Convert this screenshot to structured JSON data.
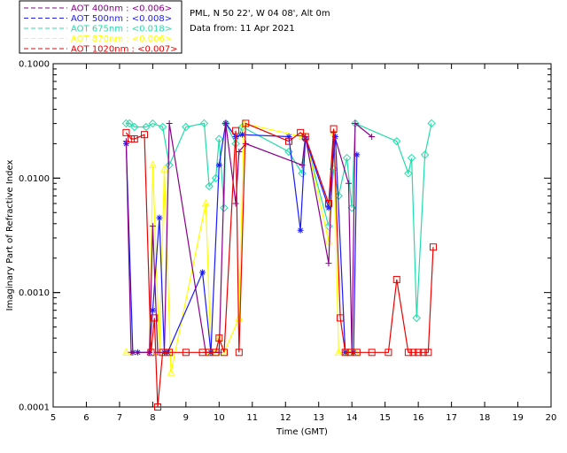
{
  "header": {
    "site": "PML, N 50 22', W 04 08', Alt 0m",
    "date": "Data from: 11 Apr 2021"
  },
  "legend": [
    {
      "label": "AOT  400nm : <0.006>",
      "color": "#8a008a"
    },
    {
      "label": "AOT  500nm : <0.008>",
      "color": "#1a1aff"
    },
    {
      "label": "AOT  675nm : <0.018>",
      "color": "#22ddaa"
    },
    {
      "label": "AOT  870nm : <0.006>",
      "color": "#ffff00"
    },
    {
      "label": "AOT 1020nm : <0.007>",
      "color": "#ee0000"
    }
  ],
  "chart_data": {
    "type": "line",
    "xlabel": "Time (GMT)",
    "ylabel": "Imaginary Part of Refractive Index",
    "xlim": [
      5,
      20
    ],
    "ylim": [
      0.0001,
      0.1
    ],
    "yscale": "log",
    "xticks": [
      "5",
      "6",
      "7",
      "8",
      "9",
      "10",
      "11",
      "12",
      "13",
      "14",
      "15",
      "16",
      "17",
      "18",
      "19",
      "20"
    ],
    "yticks": [
      {
        "value": 0.0001,
        "label": "0.0001"
      },
      {
        "value": 0.001,
        "label": "0.0010"
      },
      {
        "value": 0.01,
        "label": "0.0100"
      },
      {
        "value": 0.1,
        "label": "0.1000"
      }
    ],
    "series": [
      {
        "name": "AOT  400nm : <0.006>",
        "color": "#8a008a",
        "marker": "plus",
        "points": [
          [
            7.2,
            0.021
          ],
          [
            7.35,
            0.0003
          ],
          [
            7.9,
            0.0003
          ],
          [
            8.0,
            0.0038
          ],
          [
            8.15,
            0.0003
          ],
          [
            8.35,
            0.0003
          ],
          [
            8.5,
            0.0301
          ],
          [
            9.6,
            0.0003
          ],
          [
            9.8,
            0.0003
          ],
          [
            10.0,
            0.0003
          ],
          [
            10.2,
            0.0301
          ],
          [
            10.5,
            0.006
          ],
          [
            10.6,
            0.017
          ],
          [
            10.8,
            0.02
          ],
          [
            12.5,
            0.013
          ],
          [
            12.6,
            0.023
          ],
          [
            13.3,
            0.0018
          ],
          [
            13.45,
            0.025
          ],
          [
            13.9,
            0.009
          ],
          [
            14.0,
            0.0003
          ],
          [
            14.1,
            0.0301
          ],
          [
            14.6,
            0.023
          ]
        ]
      },
      {
        "name": "AOT  500nm : <0.008>",
        "color": "#1a1aff",
        "marker": "star",
        "points": [
          [
            7.2,
            0.02
          ],
          [
            7.4,
            0.0003
          ],
          [
            7.55,
            0.0003
          ],
          [
            7.9,
            0.0003
          ],
          [
            8.0,
            0.0007
          ],
          [
            8.2,
            0.0045
          ],
          [
            8.35,
            0.0003
          ],
          [
            8.45,
            0.0003
          ],
          [
            9.5,
            0.0015
          ],
          [
            9.75,
            0.0003
          ],
          [
            10.0,
            0.013
          ],
          [
            10.2,
            0.0301
          ],
          [
            10.5,
            0.023
          ],
          [
            10.7,
            0.024
          ],
          [
            12.1,
            0.023
          ],
          [
            12.45,
            0.0035
          ],
          [
            12.6,
            0.022
          ],
          [
            13.3,
            0.0055
          ],
          [
            13.5,
            0.023
          ],
          [
            13.8,
            0.0003
          ],
          [
            14.05,
            0.0003
          ],
          [
            14.15,
            0.016
          ]
        ]
      },
      {
        "name": "AOT  675nm : <0.018>",
        "color": "#22ddaa",
        "marker": "diamond",
        "points": [
          [
            7.2,
            0.0301
          ],
          [
            7.3,
            0.0301
          ],
          [
            7.45,
            0.028
          ],
          [
            7.8,
            0.028
          ],
          [
            8.0,
            0.03
          ],
          [
            8.3,
            0.028
          ],
          [
            8.5,
            0.013
          ],
          [
            9.0,
            0.028
          ],
          [
            9.55,
            0.0301
          ],
          [
            9.7,
            0.0085
          ],
          [
            9.9,
            0.01
          ],
          [
            10.0,
            0.022
          ],
          [
            10.15,
            0.0055
          ],
          [
            10.2,
            0.0301
          ],
          [
            10.5,
            0.02
          ],
          [
            10.7,
            0.028
          ],
          [
            12.1,
            0.017
          ],
          [
            12.5,
            0.011
          ],
          [
            12.6,
            0.022
          ],
          [
            13.3,
            0.0038
          ],
          [
            13.45,
            0.012
          ],
          [
            13.6,
            0.007
          ],
          [
            13.85,
            0.015
          ],
          [
            14.0,
            0.0055
          ],
          [
            14.1,
            0.0301
          ],
          [
            15.35,
            0.021
          ],
          [
            15.7,
            0.011
          ],
          [
            15.8,
            0.015
          ],
          [
            15.95,
            0.0006
          ],
          [
            16.2,
            0.016
          ],
          [
            16.4,
            0.0301
          ]
        ]
      },
      {
        "name": "AOT  870nm : <0.006>",
        "color": "#ffff00",
        "marker": "tri",
        "points": [
          [
            7.2,
            0.0003
          ],
          [
            7.4,
            0.0003
          ],
          [
            7.9,
            0.0003
          ],
          [
            8.0,
            0.013
          ],
          [
            8.2,
            0.0003
          ],
          [
            8.35,
            0.012
          ],
          [
            8.55,
            0.0002
          ],
          [
            9.6,
            0.006
          ],
          [
            9.75,
            0.0003
          ],
          [
            9.9,
            0.0003
          ],
          [
            10.0,
            0.0004
          ],
          [
            10.15,
            0.0003
          ],
          [
            10.6,
            0.0006
          ],
          [
            10.75,
            0.03
          ],
          [
            12.5,
            0.023
          ],
          [
            12.6,
            0.023
          ],
          [
            13.3,
            0.0028
          ],
          [
            13.45,
            0.025
          ],
          [
            13.6,
            0.0003
          ],
          [
            13.9,
            0.0003
          ],
          [
            14.1,
            0.0003
          ]
        ]
      },
      {
        "name": "AOT 1020nm : <0.007>",
        "color": "#ee0000",
        "marker": "square",
        "points": [
          [
            7.2,
            0.025
          ],
          [
            7.35,
            0.022
          ],
          [
            7.45,
            0.022
          ],
          [
            7.75,
            0.024
          ],
          [
            7.95,
            0.0003
          ],
          [
            8.05,
            0.0006
          ],
          [
            8.15,
            0.0001
          ],
          [
            8.3,
            0.0003
          ],
          [
            8.5,
            0.0003
          ],
          [
            9.0,
            0.0003
          ],
          [
            9.5,
            0.0003
          ],
          [
            9.7,
            0.0003
          ],
          [
            9.9,
            0.0003
          ],
          [
            10.0,
            0.0004
          ],
          [
            10.15,
            0.0003
          ],
          [
            10.5,
            0.026
          ],
          [
            10.6,
            0.0003
          ],
          [
            10.8,
            0.0301
          ],
          [
            12.1,
            0.021
          ],
          [
            12.45,
            0.025
          ],
          [
            12.6,
            0.023
          ],
          [
            13.3,
            0.006
          ],
          [
            13.45,
            0.027
          ],
          [
            13.65,
            0.0006
          ],
          [
            13.8,
            0.0003
          ],
          [
            13.95,
            0.0003
          ],
          [
            14.15,
            0.0003
          ],
          [
            14.6,
            0.0003
          ],
          [
            15.1,
            0.0003
          ],
          [
            15.35,
            0.0013
          ],
          [
            15.7,
            0.0003
          ],
          [
            15.85,
            0.0003
          ],
          [
            16.0,
            0.0003
          ],
          [
            16.15,
            0.0003
          ],
          [
            16.3,
            0.0003
          ],
          [
            16.45,
            0.0025
          ]
        ]
      }
    ]
  }
}
